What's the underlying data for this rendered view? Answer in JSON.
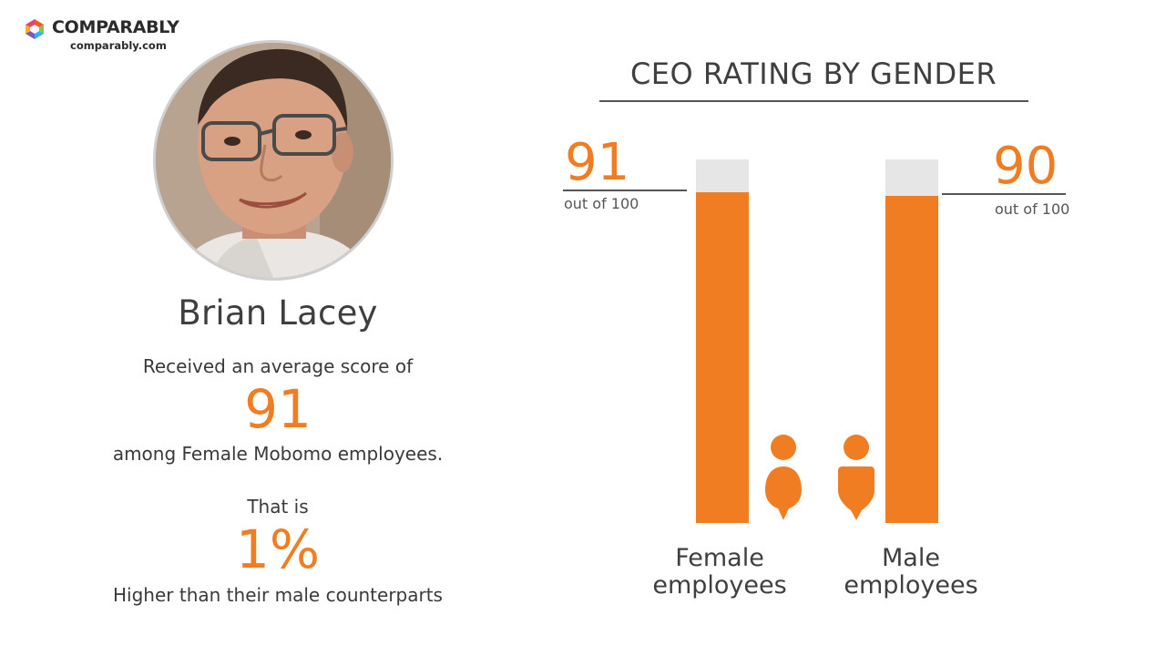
{
  "brand": {
    "name": "COMPARABLY",
    "url": "comparably.com"
  },
  "profile": {
    "name": "Brian Lacey",
    "received_text": "Received an average score of",
    "score": "91",
    "among_text": "among Female Mobomo employees.",
    "that_is_text": "That is",
    "percent": "1%",
    "higher_text": "Higher than their male counterparts"
  },
  "colors": {
    "accent": "#f07d22",
    "bar_background": "#e6e6e6",
    "text": "#3f3f3f"
  },
  "chart_data": {
    "type": "bar",
    "title": "CEO RATING BY GENDER",
    "categories": [
      "Female employees",
      "Male employees"
    ],
    "values": [
      91,
      90
    ],
    "ylim": [
      0,
      100
    ],
    "value_labels": [
      "91",
      "90"
    ],
    "value_sublabel": "out of 100",
    "icons": [
      "female-icon",
      "male-icon"
    ],
    "grid": false,
    "legend": "none"
  }
}
